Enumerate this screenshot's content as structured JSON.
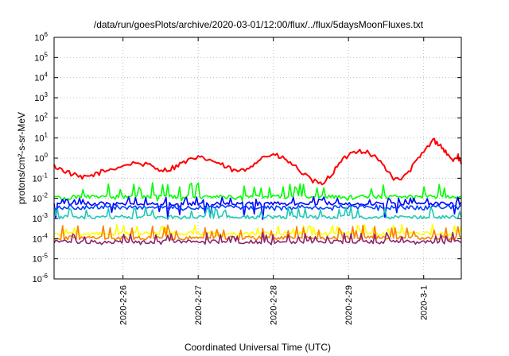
{
  "chart_data": {
    "type": "line",
    "title": "/data/run/goesPlots/archive/2020-03-01/12:00/flux/../flux/5daysMoonFluxes.txt",
    "xlabel": "Coordinated Universal Time (UTC)",
    "ylabel": "protons/cm²-s-sr-MeV",
    "yscale": "log",
    "ylim": [
      1e-06,
      1000000.0
    ],
    "y_ticks": [
      {
        "value": 1e-06,
        "base": "10",
        "exp": "-6"
      },
      {
        "value": 1e-05,
        "base": "10",
        "exp": "-5"
      },
      {
        "value": 0.0001,
        "base": "10",
        "exp": "-4"
      },
      {
        "value": 0.001,
        "base": "10",
        "exp": "-3"
      },
      {
        "value": 0.01,
        "base": "10",
        "exp": "-2"
      },
      {
        "value": 0.1,
        "base": "10",
        "exp": "-1"
      },
      {
        "value": 1.0,
        "base": "10",
        "exp": "0"
      },
      {
        "value": 10.0,
        "base": "10",
        "exp": "1"
      },
      {
        "value": 100.0,
        "base": "10",
        "exp": "2"
      },
      {
        "value": 1000.0,
        "base": "10",
        "exp": "3"
      },
      {
        "value": 10000.0,
        "base": "10",
        "exp": "4"
      },
      {
        "value": 100000.0,
        "base": "10",
        "exp": "5"
      },
      {
        "value": 1000000.0,
        "base": "10",
        "exp": "6"
      }
    ],
    "xlim": [
      "2020-02-25 02:00",
      "2020-03-01 12:00"
    ],
    "x_ticks": [
      {
        "date": "2020-02-26 00:00",
        "label": "2020-2-26"
      },
      {
        "date": "2020-02-27 00:00",
        "label": "2020-2-27"
      },
      {
        "date": "2020-02-28 00:00",
        "label": "2020-2-28"
      },
      {
        "date": "2020-02-29 00:00",
        "label": "2020-2-29"
      },
      {
        "date": "2020-03-01 00:00",
        "label": "2020-3-1"
      }
    ],
    "grid": true,
    "series": [
      {
        "color": "#ff0000",
        "points": [
          [
            "2020-02-25 02:00",
            0.4
          ],
          [
            "2020-02-25 05:00",
            0.25
          ],
          [
            "2020-02-25 08:00",
            0.15
          ],
          [
            "2020-02-25 11:00",
            0.1
          ],
          [
            "2020-02-25 14:00",
            0.14
          ],
          [
            "2020-02-25 17:00",
            0.2
          ],
          [
            "2020-02-25 20:00",
            0.28
          ],
          [
            "2020-02-26 00:00",
            0.42
          ],
          [
            "2020-02-26 04:00",
            0.6
          ],
          [
            "2020-02-26 08:00",
            0.45
          ],
          [
            "2020-02-26 11:00",
            0.3
          ],
          [
            "2020-02-26 14:00",
            0.25
          ],
          [
            "2020-02-26 17:00",
            0.4
          ],
          [
            "2020-02-26 20:00",
            0.7
          ],
          [
            "2020-02-27 00:00",
            1.0
          ],
          [
            "2020-02-27 03:00",
            0.9
          ],
          [
            "2020-02-27 06:00",
            0.6
          ],
          [
            "2020-02-27 09:00",
            0.35
          ],
          [
            "2020-02-27 12:00",
            0.22
          ],
          [
            "2020-02-27 15:00",
            0.25
          ],
          [
            "2020-02-27 18:00",
            0.6
          ],
          [
            "2020-02-27 21:00",
            1.2
          ],
          [
            "2020-02-28 00:00",
            1.5
          ],
          [
            "2020-02-28 03:00",
            1.0
          ],
          [
            "2020-02-28 06:00",
            0.5
          ],
          [
            "2020-02-28 09:00",
            0.2
          ],
          [
            "2020-02-28 12:00",
            0.08
          ],
          [
            "2020-02-28 15:00",
            0.05
          ],
          [
            "2020-02-28 18:00",
            0.12
          ],
          [
            "2020-02-28 21:00",
            0.5
          ],
          [
            "2020-02-29 00:00",
            1.5
          ],
          [
            "2020-02-29 03:00",
            2.5
          ],
          [
            "2020-02-29 06:00",
            2.0
          ],
          [
            "2020-02-29 09:00",
            1.0
          ],
          [
            "2020-02-29 12:00",
            0.3
          ],
          [
            "2020-02-29 15:00",
            0.08
          ],
          [
            "2020-02-29 18:00",
            0.12
          ],
          [
            "2020-02-29 21:00",
            0.5
          ],
          [
            "2020-03-01 00:00",
            2.0
          ],
          [
            "2020-03-01 03:00",
            8.0
          ],
          [
            "2020-03-01 05:00",
            5.0
          ],
          [
            "2020-03-01 07:00",
            2.0
          ],
          [
            "2020-03-01 09:00",
            0.8
          ],
          [
            "2020-03-01 11:00",
            1.2
          ],
          [
            "2020-03-01 12:00",
            0.5
          ]
        ]
      },
      {
        "color": "#00ff00",
        "base": 0.012,
        "spike": 0.06,
        "trough": 0.007
      },
      {
        "color": "#0000ff",
        "base": 0.0055,
        "spike": 0.012,
        "trough": 0.0009
      },
      {
        "color": "#0040ff",
        "base": 0.0035,
        "spike": 0.0048,
        "trough": 0.0025
      },
      {
        "color": "#20c8b8",
        "base": 0.0012,
        "spike": 0.004,
        "trough": 0.0009
      },
      {
        "color": "#ffff00",
        "base": 0.00018,
        "spike": 0.0005,
        "trough": 0.00012
      },
      {
        "color": "#ff8000",
        "base": 0.00011,
        "spike": 0.0005,
        "trough": 8e-05
      },
      {
        "color": "#8b2570",
        "base": 7e-05,
        "spike": 0.0002,
        "trough": 5e-05
      }
    ]
  }
}
